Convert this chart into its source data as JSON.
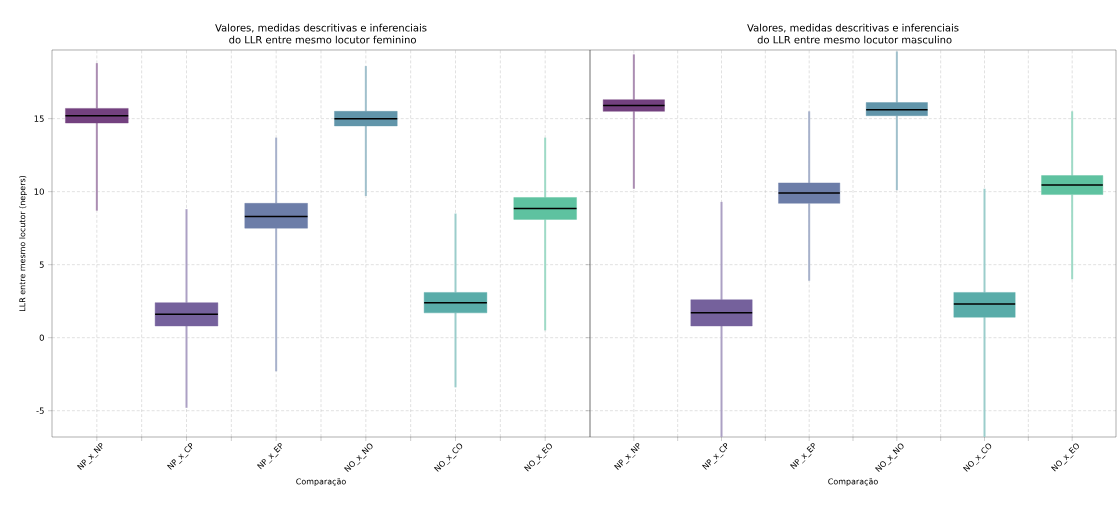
{
  "chart_data": [
    {
      "type": "box",
      "title": "Valores, medidas descritivas e inferenciais\n do LLR entre mesmo locutor feminino",
      "xlabel": "Comparação",
      "ylabel": "LLR entre mesmo locutor (nepers)",
      "categories": [
        "NP_x_NP",
        "NP_x_CP",
        "NP_x_EP",
        "NO_x_NO",
        "NO_x_CO",
        "NO_x_EO"
      ],
      "colors": [
        "#73417f",
        "#75619c",
        "#6c7da8",
        "#6195aa",
        "#59aca9",
        "#5ec2a0"
      ],
      "boxes": [
        {
          "low": 8.7,
          "q1": 14.7,
          "median": 15.2,
          "q3": 15.7,
          "high": 18.8
        },
        {
          "low": -4.8,
          "q1": 0.8,
          "median": 1.6,
          "q3": 2.4,
          "high": 8.8
        },
        {
          "low": -2.3,
          "q1": 7.5,
          "median": 8.3,
          "q3": 9.2,
          "high": 13.7
        },
        {
          "low": 9.7,
          "q1": 14.5,
          "median": 15.0,
          "q3": 15.5,
          "high": 18.6
        },
        {
          "low": -3.4,
          "q1": 1.7,
          "median": 2.4,
          "q3": 3.1,
          "high": 8.5
        },
        {
          "low": 0.5,
          "q1": 8.1,
          "median": 8.85,
          "q3": 9.6,
          "high": 13.7
        }
      ],
      "ylim": [
        -6.8,
        19.7
      ],
      "yticks": [
        -5,
        0,
        5,
        10,
        15
      ],
      "grid": true
    },
    {
      "type": "box",
      "title": "Valores, medidas descritivas e inferenciais\n do LLR entre mesmo locutor masculino",
      "xlabel": "Comparação",
      "categories": [
        "NP_x_NP",
        "NP_x_CP",
        "NP_x_EP",
        "NO_x_NO",
        "NO_x_CO",
        "NO_x_EO"
      ],
      "colors": [
        "#73417f",
        "#75619c",
        "#6c7da8",
        "#6195aa",
        "#59aca9",
        "#5ec2a0"
      ],
      "boxes": [
        {
          "low": 10.2,
          "q1": 15.5,
          "median": 15.9,
          "q3": 16.3,
          "high": 19.4
        },
        {
          "low": -6.8,
          "q1": 0.8,
          "median": 1.7,
          "q3": 2.6,
          "high": 9.3
        },
        {
          "low": 3.9,
          "q1": 9.2,
          "median": 9.9,
          "q3": 10.6,
          "high": 15.5
        },
        {
          "low": 10.1,
          "q1": 15.2,
          "median": 15.6,
          "q3": 16.1,
          "high": 19.6
        },
        {
          "low": -6.8,
          "q1": 1.4,
          "median": 2.3,
          "q3": 3.1,
          "high": 10.2
        },
        {
          "low": 4.0,
          "q1": 9.8,
          "median": 10.45,
          "q3": 11.1,
          "high": 15.5
        }
      ],
      "ylim": [
        -6.8,
        19.7
      ],
      "yticks": [
        -5,
        0,
        5,
        10,
        15
      ],
      "grid": true,
      "tick_labels": "x"
    }
  ]
}
